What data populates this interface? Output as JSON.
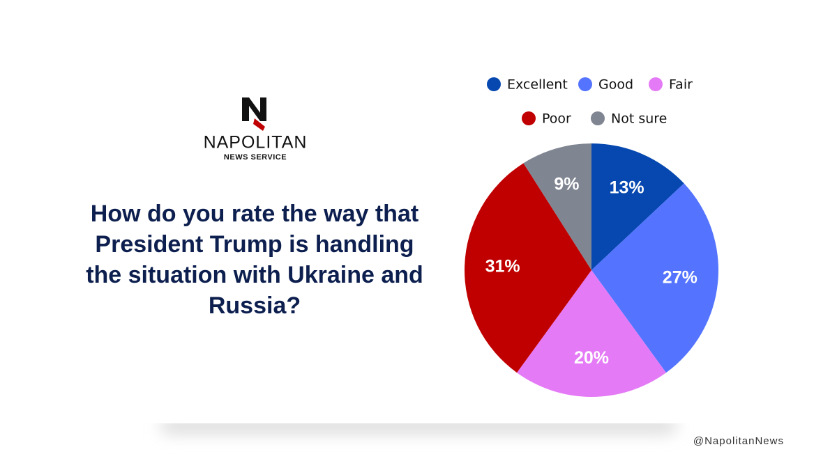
{
  "brand": {
    "name": "NAPOLITAN",
    "tagline": "NEWS SERVICE",
    "handle": "@NapolitanNews"
  },
  "chart_data": {
    "type": "pie",
    "title": "How do you rate the way that President Trump is handling the situation with Ukraine and Russia?",
    "categories": [
      "Excellent",
      "Good",
      "Fair",
      "Poor",
      "Not sure"
    ],
    "values": [
      13,
      27,
      20,
      31,
      9
    ],
    "value_labels": [
      "13%",
      "27%",
      "20%",
      "31%",
      "9%"
    ],
    "colors": [
      "#0648b0",
      "#5474ff",
      "#e57af6",
      "#c00000",
      "#808592"
    ]
  }
}
